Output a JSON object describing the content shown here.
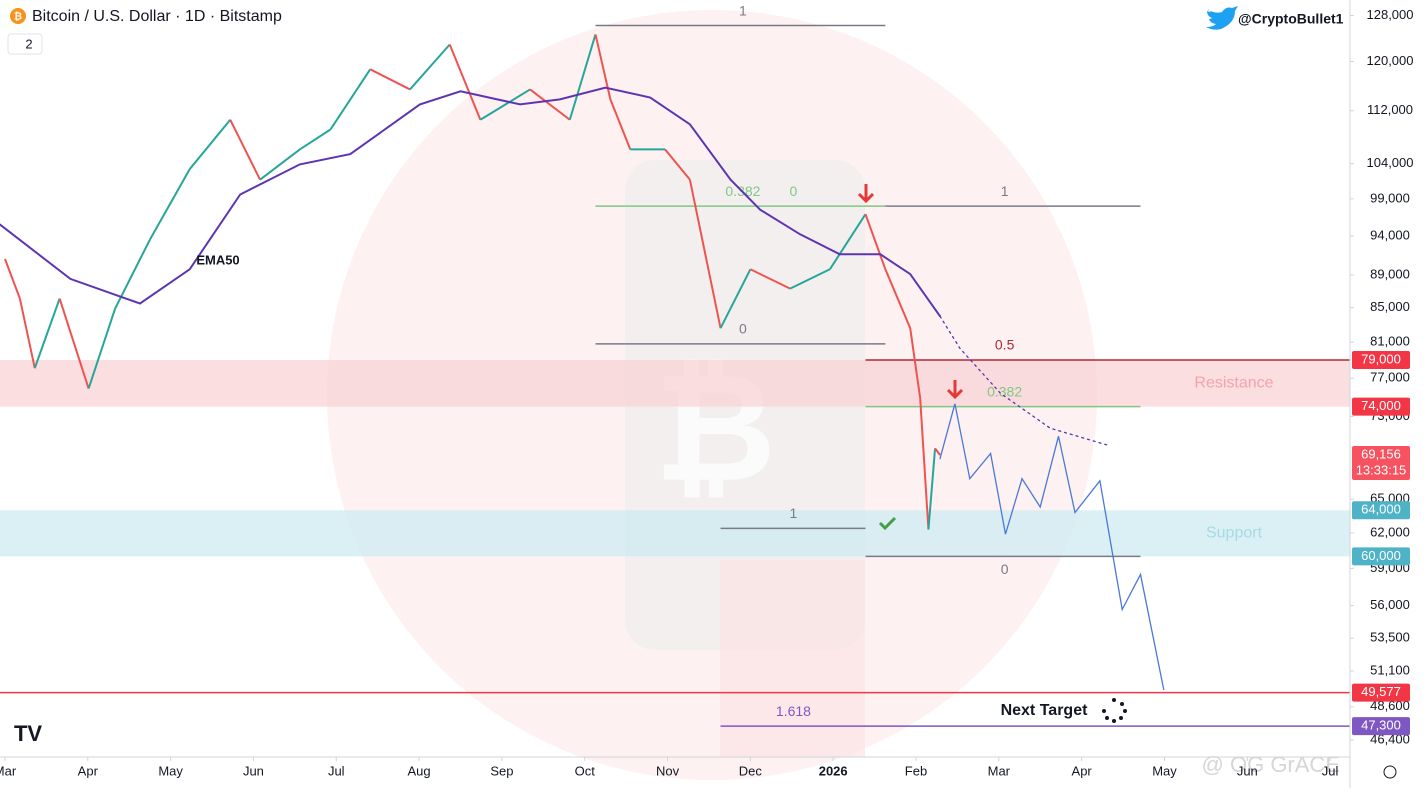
{
  "chart_data": {
    "type": "line",
    "title": "Bitcoin / U.S. Dollar · 1D · Bitstamp",
    "indicator_count": "2",
    "author": "@CryptoBullet1",
    "annotation": "Next Target",
    "watermark": "@ OG GrACE",
    "log_scale": true,
    "grid": false,
    "xlim": [
      -0.06,
      16.24
    ],
    "xticks": [
      {
        "value": 0,
        "label": "Mar"
      },
      {
        "value": 1,
        "label": "Apr"
      },
      {
        "value": 2,
        "label": "May"
      },
      {
        "value": 3,
        "label": "Jun"
      },
      {
        "value": 4,
        "label": "Jul"
      },
      {
        "value": 5,
        "label": "Aug"
      },
      {
        "value": 6,
        "label": "Sep"
      },
      {
        "value": 7,
        "label": "Oct"
      },
      {
        "value": 8,
        "label": "Nov"
      },
      {
        "value": 9,
        "label": "Dec"
      },
      {
        "value": 10,
        "label": "2026"
      },
      {
        "value": 11,
        "label": "Feb"
      },
      {
        "value": 12,
        "label": "Mar"
      },
      {
        "value": 13,
        "label": "Apr"
      },
      {
        "value": 14,
        "label": "May"
      },
      {
        "value": 15,
        "label": "Jun"
      },
      {
        "value": 16,
        "label": "Jul"
      }
    ],
    "ylim": [
      45300,
      130800
    ],
    "yticks": [
      {
        "value": 128000,
        "label": "128,000"
      },
      {
        "value": 120000,
        "label": "120,000"
      },
      {
        "value": 112000,
        "label": "112,000"
      },
      {
        "value": 104000,
        "label": "104,000"
      },
      {
        "value": 99000,
        "label": "99,000"
      },
      {
        "value": 94000,
        "label": "94,000"
      },
      {
        "value": 89000,
        "label": "89,000"
      },
      {
        "value": 85000,
        "label": "85,000"
      },
      {
        "value": 81000,
        "label": "81,000"
      },
      {
        "value": 77000,
        "label": "77,000"
      },
      {
        "value": 73000,
        "label": "73,000"
      },
      {
        "value": 65000,
        "label": "65,000"
      },
      {
        "value": 62000,
        "label": "62,000"
      },
      {
        "value": 59000,
        "label": "59,000"
      },
      {
        "value": 56000,
        "label": "56,000"
      },
      {
        "value": 53500,
        "label": "53,500"
      },
      {
        "value": 51100,
        "label": "51,100"
      },
      {
        "value": 48600,
        "label": "48,600"
      },
      {
        "value": 46400,
        "label": "46,400"
      }
    ],
    "zones": [
      {
        "name": "Resistance",
        "from": 74000,
        "to": 79000,
        "color": "#f8d3d6",
        "label_color": "#f4a3aa"
      },
      {
        "name": "Support",
        "from": 60000,
        "to": 64000,
        "color": "#cdebf2",
        "label_color": "#a6dbe6"
      }
    ],
    "levels": [
      {
        "value": 126200,
        "color": "#787b86",
        "x": [
          7.13,
          10.63
        ],
        "labels": [
          {
            "text": "1",
            "x": 8.91
          }
        ]
      },
      {
        "value": 98000,
        "color": "#81c784",
        "x": [
          7.13,
          10.63
        ],
        "labels": [
          {
            "text": "0.382",
            "x": 8.91
          },
          {
            "text": "0",
            "x": 9.52
          }
        ]
      },
      {
        "value": 98000,
        "color": "#787b86",
        "x": [
          10.63,
          13.71
        ],
        "labels": [
          {
            "text": "1",
            "x": 12.07
          }
        ]
      },
      {
        "value": 80800,
        "color": "#787b86",
        "x": [
          7.13,
          10.63
        ],
        "labels": [
          {
            "text": "0",
            "x": 8.91
          }
        ]
      },
      {
        "value": 79000,
        "color": "#b22833",
        "x": [
          10.39,
          16.24
        ],
        "labels": [
          {
            "text": "0.5",
            "x": 12.07
          }
        ]
      },
      {
        "value": 74000,
        "color": "#81c784",
        "x": [
          10.39,
          13.71
        ],
        "labels": [
          {
            "text": "0.382",
            "x": 12.07
          }
        ]
      },
      {
        "value": 62400,
        "color": "#787b86",
        "x": [
          8.64,
          10.39
        ],
        "labels": [
          {
            "text": "1",
            "x": 9.52
          }
        ]
      },
      {
        "value": 60000,
        "color": "#787b86",
        "x": [
          10.39,
          13.71
        ],
        "labels": [
          {
            "text": "0",
            "x": 12.07,
            "below": true
          }
        ]
      },
      {
        "value": 49577,
        "color": "#f23645",
        "x": [
          -0.06,
          16.24
        ],
        "labels": []
      },
      {
        "value": 47300,
        "color": "#7e57c2",
        "x": [
          8.64,
          16.24
        ],
        "labels": [
          {
            "text": "1.618",
            "x": 9.52
          }
        ]
      }
    ],
    "series": [
      {
        "color_up": "#26a69a",
        "color_down": "#ef5350",
        "x": [
          0,
          0.18,
          0.36,
          0.66,
          1.01,
          1.33,
          1.75,
          2.23,
          2.72,
          3.08,
          3.56,
          3.93,
          4.41,
          4.89,
          5.37,
          5.74,
          6.34,
          6.82,
          7.13,
          7.31,
          7.55,
          7.97,
          8.27,
          8.64,
          9.0,
          9.48,
          9.96,
          10.39,
          10.63,
          10.93,
          11.05,
          11.15,
          11.23,
          11.29
        ],
        "values": [
          91000,
          86100,
          78100,
          86100,
          75900,
          84900,
          93500,
          103200,
          110600,
          101700,
          106100,
          109100,
          118700,
          115400,
          122900,
          110600,
          115400,
          110600,
          124640,
          113800,
          106100,
          106100,
          101700,
          82600,
          89700,
          87300,
          89700,
          96900,
          89700,
          82600,
          74900,
          62300,
          69800,
          69156
        ]
      },
      {
        "name": "EMA50",
        "color": "#5e35b1",
        "x": [
          -0.06,
          0.79,
          1.63,
          2.23,
          2.84,
          3.56,
          4.17,
          5.01,
          5.5,
          6.22,
          6.7,
          7.25,
          7.79,
          8.27,
          8.76,
          9.12,
          9.6,
          10.08,
          10.57,
          10.93,
          11.29
        ],
        "values": [
          95500,
          88500,
          85500,
          89700,
          99600,
          103900,
          105400,
          113000,
          115100,
          113000,
          113800,
          115700,
          114100,
          109900,
          101700,
          97500,
          94200,
          91600,
          91600,
          89100,
          84000
        ]
      },
      {
        "color": "#5e35b1",
        "dotted": true,
        "x": [
          11.29,
          11.53,
          12.02,
          12.62,
          13.32
        ],
        "values": [
          84000,
          80300,
          75400,
          71800,
          70100
        ]
      },
      {
        "color": "#4a78d8",
        "x": [
          11.29,
          11.47,
          11.65,
          11.9,
          12.08,
          12.28,
          12.5,
          12.72,
          12.92,
          13.22,
          13.49,
          13.71,
          13.99
        ],
        "values": [
          68800,
          74300,
          66900,
          69300,
          61900,
          66900,
          64300,
          71000,
          63800,
          66700,
          55700,
          58500,
          49800
        ]
      }
    ],
    "price_tags": [
      {
        "value": 79000,
        "label": "79,000",
        "color": "#f23645"
      },
      {
        "value": 74000,
        "label": "74,000",
        "color": "#f23645"
      },
      {
        "value": 69156,
        "label": "69,156",
        "sub": "13:33:15",
        "color": "#f7525f"
      },
      {
        "value": 64000,
        "label": "64,000",
        "color": "#4fb3c8"
      },
      {
        "value": 60000,
        "label": "60,000",
        "color": "#4fb3c8"
      },
      {
        "value": 49577,
        "label": "49,577",
        "color": "#f23645"
      },
      {
        "value": 47300,
        "label": "47,300",
        "color": "#7e57c2"
      }
    ]
  }
}
